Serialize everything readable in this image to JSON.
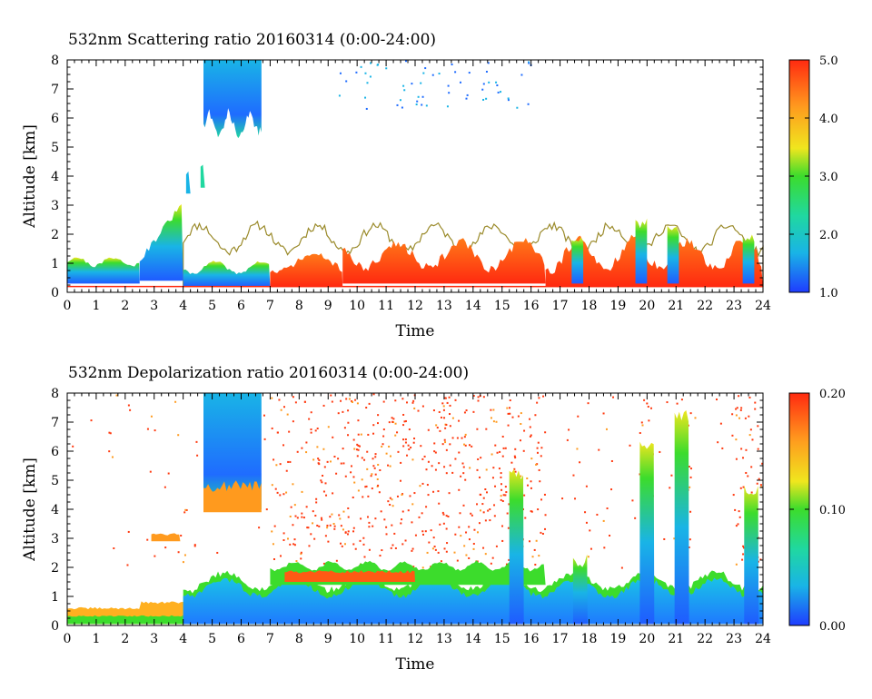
{
  "chart_data": [
    {
      "type": "heatmap",
      "title": "532nm Scattering ratio  20160314 (0:00-24:00)",
      "xlabel": "Time",
      "ylabel": "Altitude [km]",
      "xlim": [
        0,
        24
      ],
      "ylim": [
        0,
        8
      ],
      "x_ticks": [
        "0",
        "1",
        "2",
        "3",
        "4",
        "5",
        "6",
        "7",
        "8",
        "9",
        "10",
        "11",
        "12",
        "13",
        "14",
        "15",
        "16",
        "17",
        "18",
        "19",
        "20",
        "21",
        "22",
        "23",
        "24"
      ],
      "y_ticks": [
        "0",
        "1",
        "2",
        "3",
        "4",
        "5",
        "6",
        "7",
        "8"
      ],
      "colorbar": {
        "range": [
          1.0,
          5.0
        ],
        "ticks": [
          "1.0",
          "2.0",
          "3.0",
          "4.0",
          "5.0"
        ]
      },
      "colormap": [
        "#1f3cff",
        "#19b4e6",
        "#20d8a0",
        "#3cdc2c",
        "#f0e61e",
        "#ff9a1e",
        "#ff2a10"
      ],
      "features": [
        {
          "x": [
            0.0,
            2.5
          ],
          "y": [
            0.3,
            1.2
          ],
          "value": 2.0
        },
        {
          "x": [
            2.5,
            4.0
          ],
          "y": [
            0.4,
            3.0
          ],
          "value": 2.2
        },
        {
          "x": [
            4.0,
            7.0
          ],
          "y": [
            0.2,
            1.0
          ],
          "value": 2.5
        },
        {
          "x": [
            4.7,
            6.7
          ],
          "y": [
            5.6,
            8.0
          ],
          "value": 2.1
        },
        {
          "x": [
            7.0,
            9.5
          ],
          "y": [
            0.2,
            1.2
          ],
          "value": 4.7
        },
        {
          "x": [
            9.5,
            16.5
          ],
          "y": [
            0.2,
            2.0
          ],
          "value": 4.5
        },
        {
          "x": [
            16.5,
            24.0
          ],
          "y": [
            0.2,
            2.2
          ],
          "value": 4.6
        }
      ]
    },
    {
      "type": "heatmap",
      "title": "532nm Depolarization ratio  20160314 (0:00-24:00)",
      "xlabel": "Time",
      "ylabel": "Altitude [km]",
      "xlim": [
        0,
        24
      ],
      "ylim": [
        0,
        8
      ],
      "x_ticks": [
        "0",
        "1",
        "2",
        "3",
        "4",
        "5",
        "6",
        "7",
        "8",
        "9",
        "10",
        "11",
        "12",
        "13",
        "14",
        "15",
        "16",
        "17",
        "18",
        "19",
        "20",
        "21",
        "22",
        "23",
        "24"
      ],
      "y_ticks": [
        "0",
        "1",
        "2",
        "3",
        "4",
        "5",
        "6",
        "7",
        "8"
      ],
      "colorbar": {
        "range": [
          0.0,
          0.2
        ],
        "ticks": [
          "0.00",
          "0.10",
          "0.20"
        ]
      },
      "colormap": [
        "#1f3cff",
        "#19b4e6",
        "#20d8a0",
        "#3cdc2c",
        "#f0e61e",
        "#ff9a1e",
        "#ff2a10"
      ],
      "features": [
        {
          "x": [
            0.0,
            4.0
          ],
          "y": [
            0.0,
            0.7
          ],
          "value": 0.14
        },
        {
          "x": [
            4.0,
            24.0
          ],
          "y": [
            0.0,
            1.5
          ],
          "value": 0.03
        },
        {
          "x": [
            4.7,
            6.7
          ],
          "y": [
            4.0,
            8.0
          ],
          "value": 0.05
        },
        {
          "x": [
            7.0,
            16.5
          ],
          "y": [
            1.5,
            2.2
          ],
          "value": 0.12
        },
        {
          "x": [
            7.0,
            16.5
          ],
          "y": [
            2.2,
            8.0
          ],
          "value": 0.19
        }
      ]
    }
  ]
}
